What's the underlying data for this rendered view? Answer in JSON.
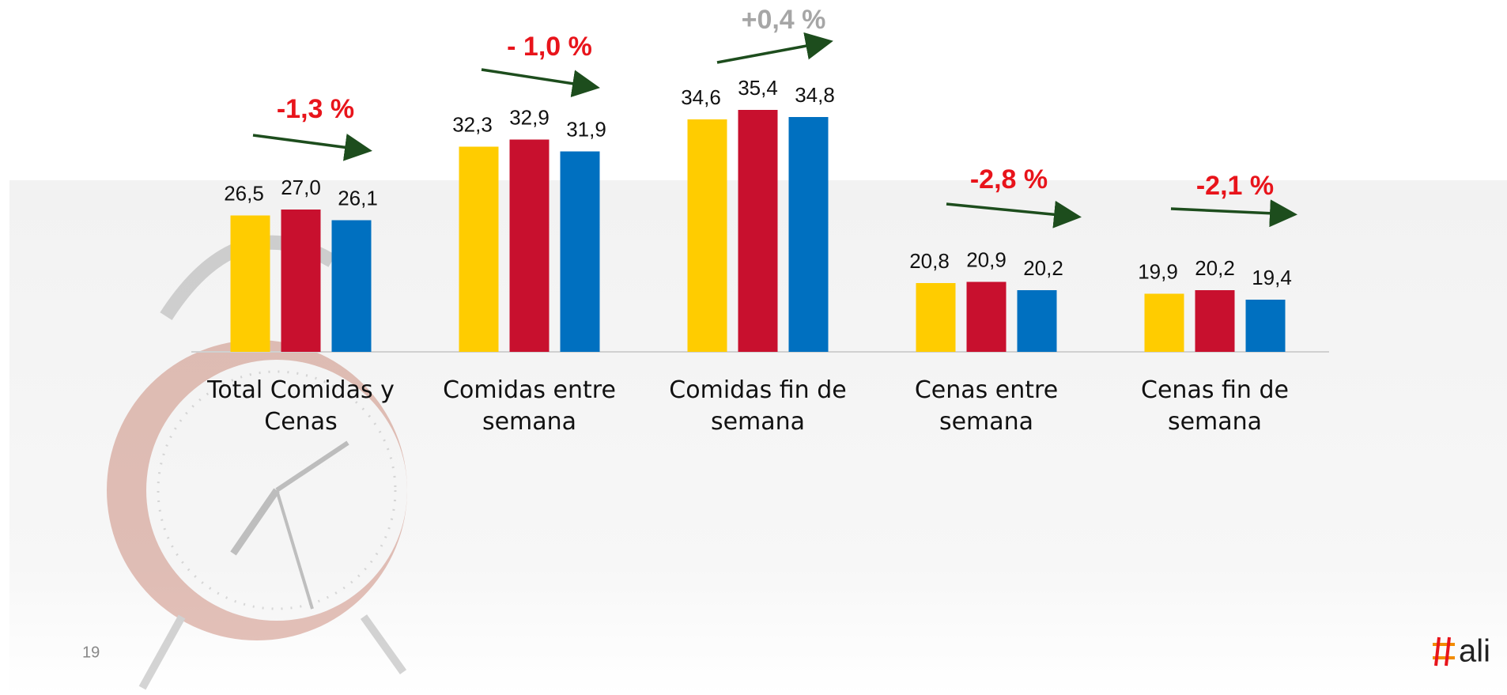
{
  "chart_data": {
    "type": "bar",
    "categories": [
      "Total Comidas y Cenas",
      "Comidas entre semana",
      "Comidas fin de semana",
      "Cenas entre semana",
      "Cenas fin de semana"
    ],
    "series": [
      {
        "color": "#ffcc00",
        "values": [
          26.5,
          32.3,
          34.6,
          20.8,
          19.9
        ],
        "value_labels": [
          "26,5",
          "32,3",
          "34,6",
          "20,8",
          "19,9"
        ]
      },
      {
        "color": "#c8102e",
        "values": [
          27.0,
          32.9,
          35.4,
          20.9,
          20.2
        ],
        "value_labels": [
          "27,0",
          "32,9",
          "35,4",
          "20,9",
          "20,2"
        ]
      },
      {
        "color": "#0070c0",
        "values": [
          26.1,
          31.9,
          34.8,
          20.2,
          19.4
        ],
        "value_labels": [
          "26,1",
          "31,9",
          "34,8",
          "20,2",
          "19,4"
        ]
      }
    ],
    "ylim": [
      15,
      37
    ],
    "annotations": [
      {
        "text": "-1,3 %",
        "color": "#e8141b"
      },
      {
        "text": "- 1,0 %",
        "color": "#e8141b"
      },
      {
        "text": "+0,4 %",
        "color": "#a6a6a6"
      },
      {
        "text": "-2,8 %",
        "color": "#e8141b"
      },
      {
        "text": "-2,1 %",
        "color": "#e8141b"
      }
    ]
  },
  "footer": {
    "page_number": "19",
    "logo": "ali"
  }
}
